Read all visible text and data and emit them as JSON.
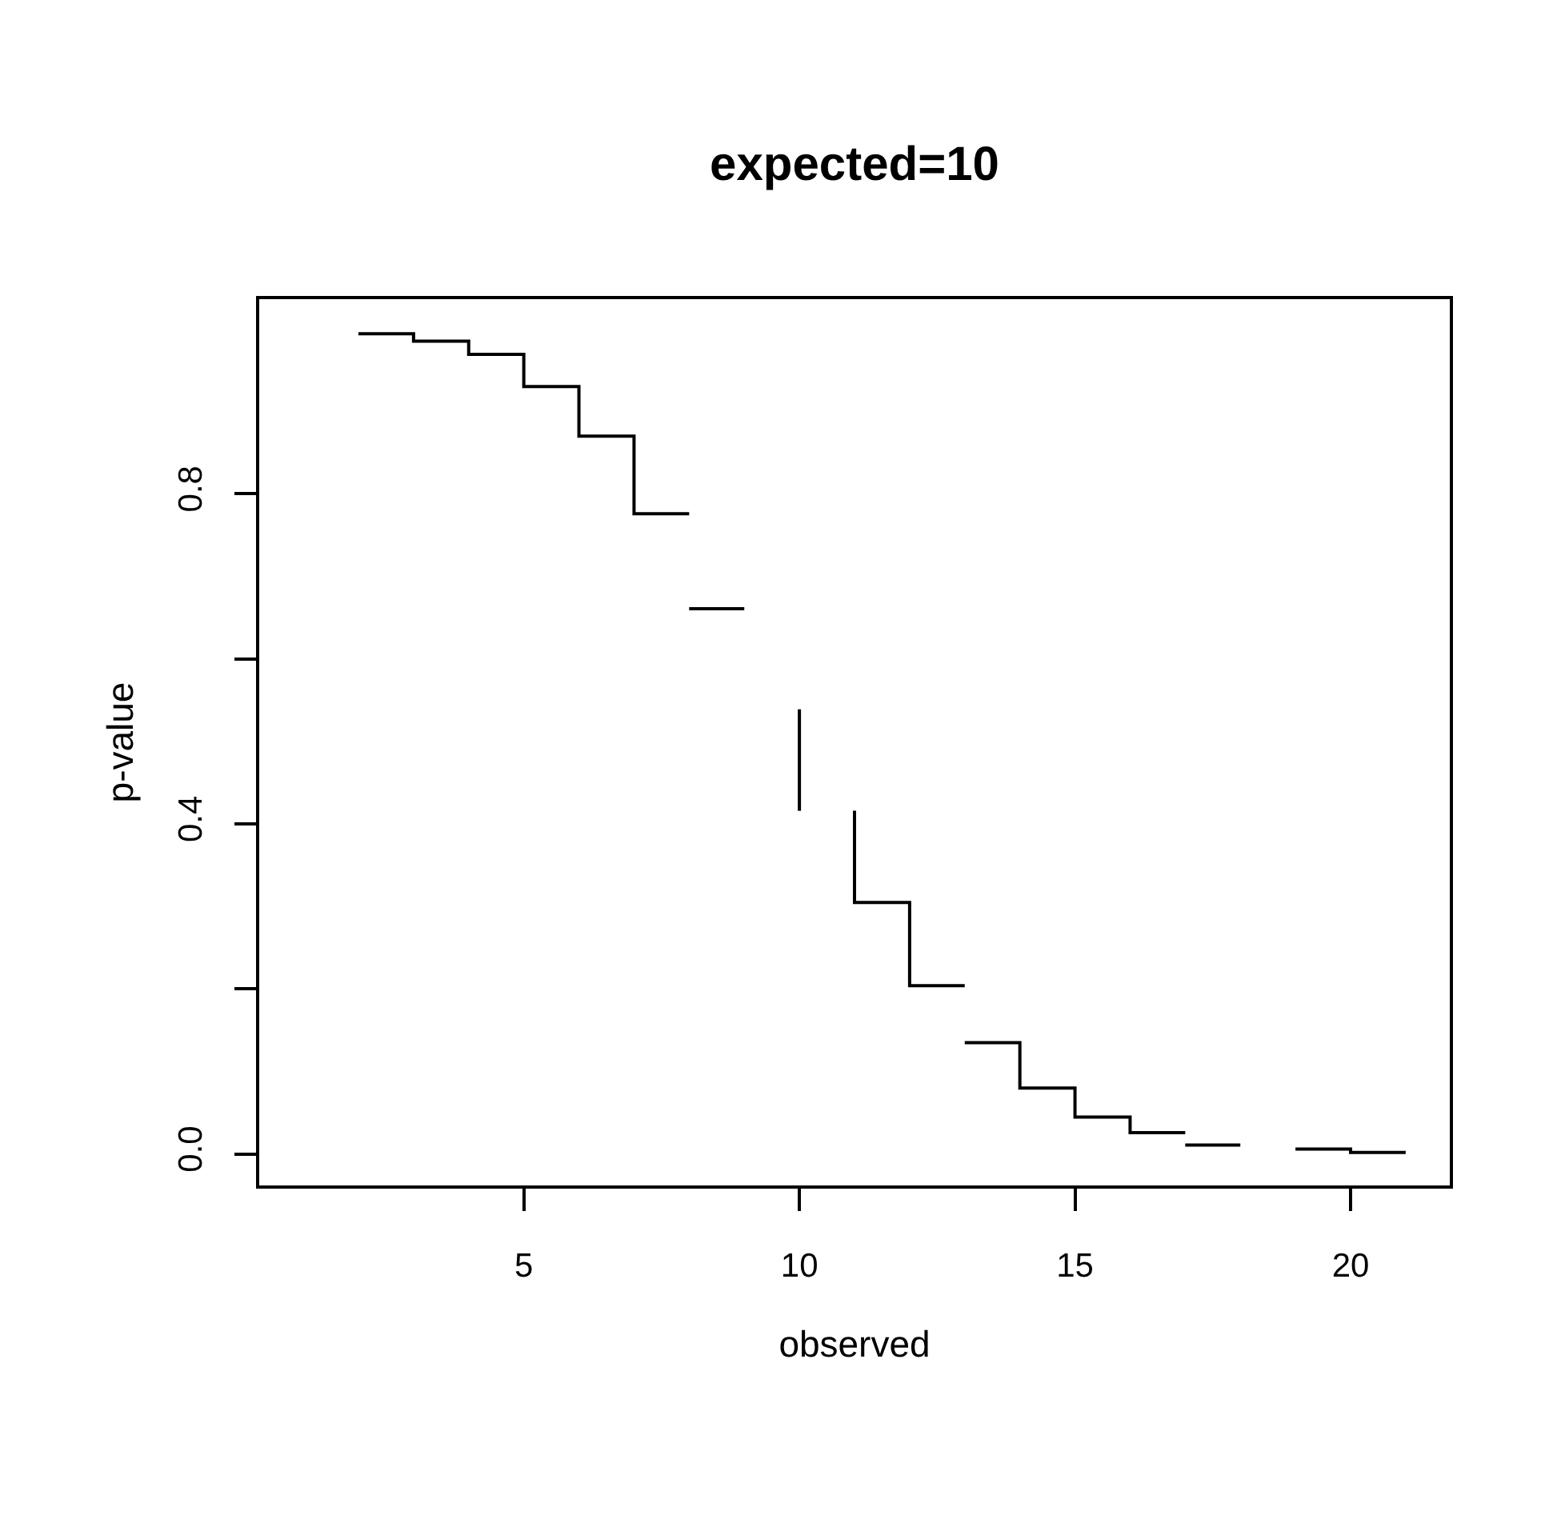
{
  "chart_data": {
    "type": "line",
    "title": "expected=10",
    "xlabel": "observed",
    "ylabel": "p-value",
    "x": [
      2,
      3,
      3,
      4,
      4,
      5,
      5,
      6,
      6,
      7,
      7,
      8,
      null,
      8,
      9,
      null,
      10,
      10,
      null,
      11,
      11,
      12,
      12,
      13,
      null,
      13,
      14,
      14,
      15,
      15,
      16,
      16,
      17,
      null,
      17,
      18,
      null,
      19,
      20,
      20,
      21
    ],
    "series": [
      {
        "color": "#000000",
        "values": [
          0.994,
          0.994,
          0.985,
          0.985,
          0.969,
          0.969,
          0.93,
          0.93,
          0.87,
          0.87,
          0.776,
          0.776,
          null,
          0.661,
          0.661,
          null,
          0.539,
          0.416,
          null,
          0.416,
          0.305,
          0.305,
          0.204,
          0.204,
          null,
          0.135,
          0.135,
          0.08,
          0.08,
          0.045,
          0.045,
          0.026,
          0.026,
          null,
          0.011,
          0.011,
          null,
          0.006,
          0.006,
          0.002,
          0.002
        ]
      }
    ],
    "xlim": [
      0.2,
      21.8
    ],
    "ylim": [
      -0.038,
      1.036
    ],
    "xticks": [
      5,
      10,
      15,
      20
    ],
    "yticks": [
      {
        "value": 0,
        "label": "0.0"
      },
      {
        "value": 0.2,
        "label": null
      },
      {
        "value": 0.4,
        "label": "0.4"
      },
      {
        "value": 0.6,
        "label": null
      },
      {
        "value": 0.8,
        "label": "0.8"
      }
    ],
    "marker": "none",
    "line_style": "solid"
  }
}
